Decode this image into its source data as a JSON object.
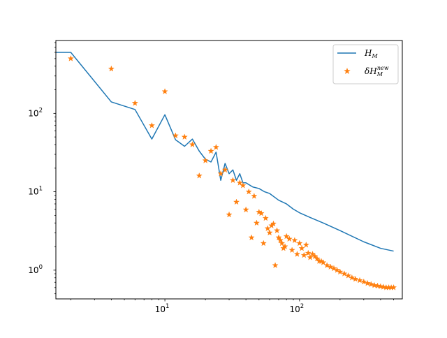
{
  "chart_data": {
    "type": "scatter",
    "title": "",
    "xlabel": "",
    "ylabel": "",
    "xscale": "log",
    "yscale": "log",
    "xlim": [
      1.55,
      580
    ],
    "ylim": [
      0.43,
      850
    ],
    "grid": false,
    "legend_position": "top-right",
    "x_ticks": [
      {
        "value": 10,
        "label": "10",
        "sup": "1"
      },
      {
        "value": 100,
        "label": "10",
        "sup": "2"
      }
    ],
    "y_ticks": [
      {
        "value": 1,
        "label": "10",
        "sup": "0"
      },
      {
        "value": 10,
        "label": "10",
        "sup": "1"
      },
      {
        "value": 100,
        "label": "10",
        "sup": "2"
      }
    ],
    "series": [
      {
        "name": "H_M",
        "legend_html": "H<tspan font-size=\"8\" dy=\"3\">M</tspan>",
        "kind": "line",
        "color": "#1f77b4",
        "x": [
          1.55,
          2,
          4,
          6,
          8,
          10,
          12,
          14,
          16,
          18,
          20,
          22,
          24,
          26,
          28,
          30,
          32,
          34,
          36,
          38,
          40,
          45,
          50,
          55,
          60,
          70,
          80,
          90,
          100,
          120,
          150,
          200,
          300,
          400,
          500
        ],
        "y": [
          600,
          600,
          140,
          112,
          47,
          96,
          46,
          38,
          47,
          33,
          26,
          24,
          32,
          14,
          23,
          17,
          19,
          14,
          17,
          13,
          13,
          11.5,
          11,
          10,
          9.5,
          7.8,
          7,
          6,
          5.4,
          4.7,
          4,
          3.2,
          2.3,
          1.9,
          1.75
        ]
      },
      {
        "name": "δH_M^new",
        "legend_html": "δH<tspan font-size=\"8\" dy=\"3\">M</tspan><tspan font-size=\"8\" dy=\"-9\" dx=\"-8\">new</tspan>",
        "kind": "scatter",
        "marker": "star",
        "color": "#ff7f0e",
        "x": [
          2,
          4,
          6,
          8,
          10,
          12,
          14,
          16,
          18,
          20,
          22,
          24,
          26,
          28,
          30,
          32,
          34,
          36,
          38,
          40,
          42,
          44,
          46,
          48,
          50,
          52,
          54,
          56,
          58,
          60,
          62,
          64,
          66,
          68,
          70,
          72,
          74,
          76,
          78,
          80,
          84,
          88,
          92,
          96,
          100,
          104,
          108,
          112,
          116,
          120,
          125,
          130,
          135,
          140,
          145,
          150,
          160,
          170,
          180,
          190,
          200,
          215,
          230,
          245,
          260,
          280,
          300,
          320,
          340,
          360,
          380,
          400,
          420,
          440,
          460,
          480,
          500
        ],
        "y": [
          500,
          370,
          135,
          70,
          190,
          52,
          50,
          40,
          16,
          25,
          33,
          37,
          17,
          19,
          5.1,
          14,
          7.4,
          13,
          12,
          5.9,
          10,
          2.6,
          8.8,
          4,
          5.5,
          5.3,
          2.2,
          4.6,
          3.4,
          3.0,
          3.7,
          3.9,
          1.15,
          3.2,
          2.6,
          2.4,
          2.2,
          1.9,
          2.0,
          2.7,
          2.5,
          1.8,
          2.4,
          1.6,
          2.2,
          1.9,
          1.55,
          2.1,
          1.65,
          1.45,
          1.6,
          1.5,
          1.4,
          1.3,
          1.3,
          1.25,
          1.15,
          1.1,
          1.05,
          1.0,
          0.95,
          0.9,
          0.85,
          0.8,
          0.77,
          0.74,
          0.71,
          0.68,
          0.66,
          0.64,
          0.63,
          0.62,
          0.61,
          0.6,
          0.6,
          0.6,
          0.6
        ]
      }
    ]
  }
}
